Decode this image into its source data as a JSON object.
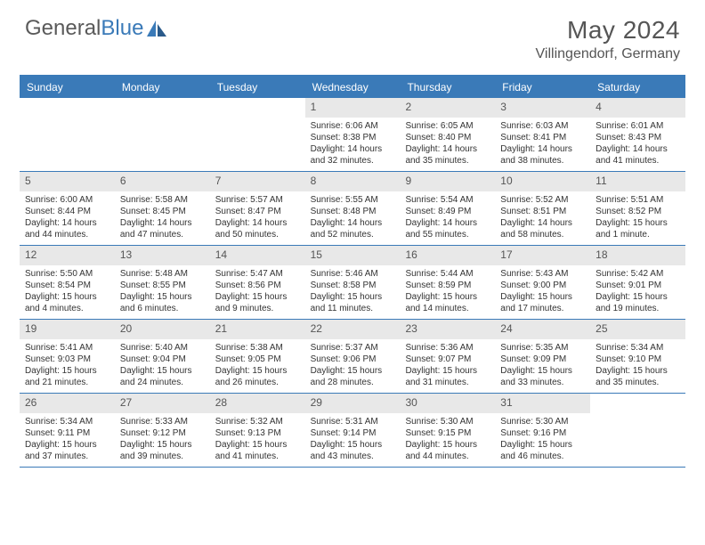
{
  "logo": {
    "general": "General",
    "blue": "Blue"
  },
  "title": {
    "month_year": "May 2024",
    "location": "Villingendorf, Germany"
  },
  "colors": {
    "accent": "#3a7ab8",
    "header_bg": "#3a7ab8",
    "header_text": "#ffffff",
    "daynum_bg": "#e8e8e8",
    "body_text": "#333333",
    "background": "#ffffff"
  },
  "days_of_week": [
    "Sunday",
    "Monday",
    "Tuesday",
    "Wednesday",
    "Thursday",
    "Friday",
    "Saturday"
  ],
  "weeks": [
    [
      {
        "day": "",
        "sunrise": "",
        "sunset": "",
        "daylight1": "",
        "daylight2": "",
        "empty": true
      },
      {
        "day": "",
        "sunrise": "",
        "sunset": "",
        "daylight1": "",
        "daylight2": "",
        "empty": true
      },
      {
        "day": "",
        "sunrise": "",
        "sunset": "",
        "daylight1": "",
        "daylight2": "",
        "empty": true
      },
      {
        "day": "1",
        "sunrise": "Sunrise: 6:06 AM",
        "sunset": "Sunset: 8:38 PM",
        "daylight1": "Daylight: 14 hours",
        "daylight2": "and 32 minutes."
      },
      {
        "day": "2",
        "sunrise": "Sunrise: 6:05 AM",
        "sunset": "Sunset: 8:40 PM",
        "daylight1": "Daylight: 14 hours",
        "daylight2": "and 35 minutes."
      },
      {
        "day": "3",
        "sunrise": "Sunrise: 6:03 AM",
        "sunset": "Sunset: 8:41 PM",
        "daylight1": "Daylight: 14 hours",
        "daylight2": "and 38 minutes."
      },
      {
        "day": "4",
        "sunrise": "Sunrise: 6:01 AM",
        "sunset": "Sunset: 8:43 PM",
        "daylight1": "Daylight: 14 hours",
        "daylight2": "and 41 minutes."
      }
    ],
    [
      {
        "day": "5",
        "sunrise": "Sunrise: 6:00 AM",
        "sunset": "Sunset: 8:44 PM",
        "daylight1": "Daylight: 14 hours",
        "daylight2": "and 44 minutes."
      },
      {
        "day": "6",
        "sunrise": "Sunrise: 5:58 AM",
        "sunset": "Sunset: 8:45 PM",
        "daylight1": "Daylight: 14 hours",
        "daylight2": "and 47 minutes."
      },
      {
        "day": "7",
        "sunrise": "Sunrise: 5:57 AM",
        "sunset": "Sunset: 8:47 PM",
        "daylight1": "Daylight: 14 hours",
        "daylight2": "and 50 minutes."
      },
      {
        "day": "8",
        "sunrise": "Sunrise: 5:55 AM",
        "sunset": "Sunset: 8:48 PM",
        "daylight1": "Daylight: 14 hours",
        "daylight2": "and 52 minutes."
      },
      {
        "day": "9",
        "sunrise": "Sunrise: 5:54 AM",
        "sunset": "Sunset: 8:49 PM",
        "daylight1": "Daylight: 14 hours",
        "daylight2": "and 55 minutes."
      },
      {
        "day": "10",
        "sunrise": "Sunrise: 5:52 AM",
        "sunset": "Sunset: 8:51 PM",
        "daylight1": "Daylight: 14 hours",
        "daylight2": "and 58 minutes."
      },
      {
        "day": "11",
        "sunrise": "Sunrise: 5:51 AM",
        "sunset": "Sunset: 8:52 PM",
        "daylight1": "Daylight: 15 hours",
        "daylight2": "and 1 minute."
      }
    ],
    [
      {
        "day": "12",
        "sunrise": "Sunrise: 5:50 AM",
        "sunset": "Sunset: 8:54 PM",
        "daylight1": "Daylight: 15 hours",
        "daylight2": "and 4 minutes."
      },
      {
        "day": "13",
        "sunrise": "Sunrise: 5:48 AM",
        "sunset": "Sunset: 8:55 PM",
        "daylight1": "Daylight: 15 hours",
        "daylight2": "and 6 minutes."
      },
      {
        "day": "14",
        "sunrise": "Sunrise: 5:47 AM",
        "sunset": "Sunset: 8:56 PM",
        "daylight1": "Daylight: 15 hours",
        "daylight2": "and 9 minutes."
      },
      {
        "day": "15",
        "sunrise": "Sunrise: 5:46 AM",
        "sunset": "Sunset: 8:58 PM",
        "daylight1": "Daylight: 15 hours",
        "daylight2": "and 11 minutes."
      },
      {
        "day": "16",
        "sunrise": "Sunrise: 5:44 AM",
        "sunset": "Sunset: 8:59 PM",
        "daylight1": "Daylight: 15 hours",
        "daylight2": "and 14 minutes."
      },
      {
        "day": "17",
        "sunrise": "Sunrise: 5:43 AM",
        "sunset": "Sunset: 9:00 PM",
        "daylight1": "Daylight: 15 hours",
        "daylight2": "and 17 minutes."
      },
      {
        "day": "18",
        "sunrise": "Sunrise: 5:42 AM",
        "sunset": "Sunset: 9:01 PM",
        "daylight1": "Daylight: 15 hours",
        "daylight2": "and 19 minutes."
      }
    ],
    [
      {
        "day": "19",
        "sunrise": "Sunrise: 5:41 AM",
        "sunset": "Sunset: 9:03 PM",
        "daylight1": "Daylight: 15 hours",
        "daylight2": "and 21 minutes."
      },
      {
        "day": "20",
        "sunrise": "Sunrise: 5:40 AM",
        "sunset": "Sunset: 9:04 PM",
        "daylight1": "Daylight: 15 hours",
        "daylight2": "and 24 minutes."
      },
      {
        "day": "21",
        "sunrise": "Sunrise: 5:38 AM",
        "sunset": "Sunset: 9:05 PM",
        "daylight1": "Daylight: 15 hours",
        "daylight2": "and 26 minutes."
      },
      {
        "day": "22",
        "sunrise": "Sunrise: 5:37 AM",
        "sunset": "Sunset: 9:06 PM",
        "daylight1": "Daylight: 15 hours",
        "daylight2": "and 28 minutes."
      },
      {
        "day": "23",
        "sunrise": "Sunrise: 5:36 AM",
        "sunset": "Sunset: 9:07 PM",
        "daylight1": "Daylight: 15 hours",
        "daylight2": "and 31 minutes."
      },
      {
        "day": "24",
        "sunrise": "Sunrise: 5:35 AM",
        "sunset": "Sunset: 9:09 PM",
        "daylight1": "Daylight: 15 hours",
        "daylight2": "and 33 minutes."
      },
      {
        "day": "25",
        "sunrise": "Sunrise: 5:34 AM",
        "sunset": "Sunset: 9:10 PM",
        "daylight1": "Daylight: 15 hours",
        "daylight2": "and 35 minutes."
      }
    ],
    [
      {
        "day": "26",
        "sunrise": "Sunrise: 5:34 AM",
        "sunset": "Sunset: 9:11 PM",
        "daylight1": "Daylight: 15 hours",
        "daylight2": "and 37 minutes."
      },
      {
        "day": "27",
        "sunrise": "Sunrise: 5:33 AM",
        "sunset": "Sunset: 9:12 PM",
        "daylight1": "Daylight: 15 hours",
        "daylight2": "and 39 minutes."
      },
      {
        "day": "28",
        "sunrise": "Sunrise: 5:32 AM",
        "sunset": "Sunset: 9:13 PM",
        "daylight1": "Daylight: 15 hours",
        "daylight2": "and 41 minutes."
      },
      {
        "day": "29",
        "sunrise": "Sunrise: 5:31 AM",
        "sunset": "Sunset: 9:14 PM",
        "daylight1": "Daylight: 15 hours",
        "daylight2": "and 43 minutes."
      },
      {
        "day": "30",
        "sunrise": "Sunrise: 5:30 AM",
        "sunset": "Sunset: 9:15 PM",
        "daylight1": "Daylight: 15 hours",
        "daylight2": "and 44 minutes."
      },
      {
        "day": "31",
        "sunrise": "Sunrise: 5:30 AM",
        "sunset": "Sunset: 9:16 PM",
        "daylight1": "Daylight: 15 hours",
        "daylight2": "and 46 minutes."
      },
      {
        "day": "",
        "sunrise": "",
        "sunset": "",
        "daylight1": "",
        "daylight2": "",
        "empty": true
      }
    ]
  ]
}
